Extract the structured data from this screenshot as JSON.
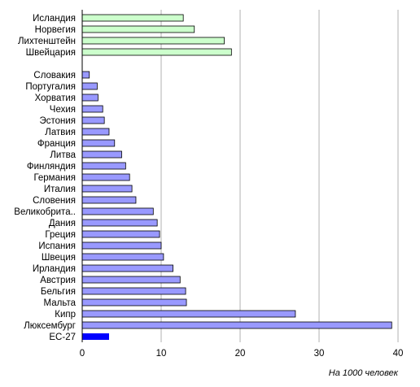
{
  "chart_data": {
    "type": "bar",
    "orientation": "horizontal",
    "title": "",
    "xlabel": "На 1000 человек",
    "ylabel": "",
    "xlim": [
      0,
      40
    ],
    "xticks": [
      0,
      10,
      20,
      30,
      40
    ],
    "grid": "vertical",
    "legend": "none",
    "colors": {
      "non_eu": "#ccffcc",
      "eu": "#9999ff",
      "eu27": "#0000ff",
      "grid": "#b0b0b0",
      "bar_edge": "#000000"
    },
    "groups": [
      {
        "group": "non_eu",
        "categories": [
          "Исландия",
          "Норвегия",
          "Лихтенштейн",
          "Швейцария"
        ],
        "values": [
          12.8,
          14.2,
          18.0,
          18.9
        ]
      },
      {
        "group": "eu",
        "categories": [
          "Словакия",
          "Португалия",
          "Хорватия",
          "Чехия",
          "Эстония",
          "Латвия",
          "Франция",
          "Литва",
          "Финляндия",
          "Германия",
          "Италия",
          "Словения",
          "Великобрита..",
          "Дания",
          "Греция",
          "Испания",
          "Швеция",
          "Ирландия",
          "Австрия",
          "Бельгия",
          "Мальта",
          "Кипр",
          "Люксембург"
        ],
        "values": [
          0.9,
          1.9,
          2.0,
          2.6,
          2.8,
          3.4,
          4.1,
          5.0,
          5.5,
          6.0,
          6.3,
          6.8,
          9.0,
          9.5,
          9.8,
          10.0,
          10.3,
          11.5,
          12.4,
          13.1,
          13.2,
          27.0,
          39.2
        ]
      },
      {
        "group": "eu27",
        "categories": [
          "ЕС-27"
        ],
        "values": [
          3.4
        ]
      }
    ]
  }
}
